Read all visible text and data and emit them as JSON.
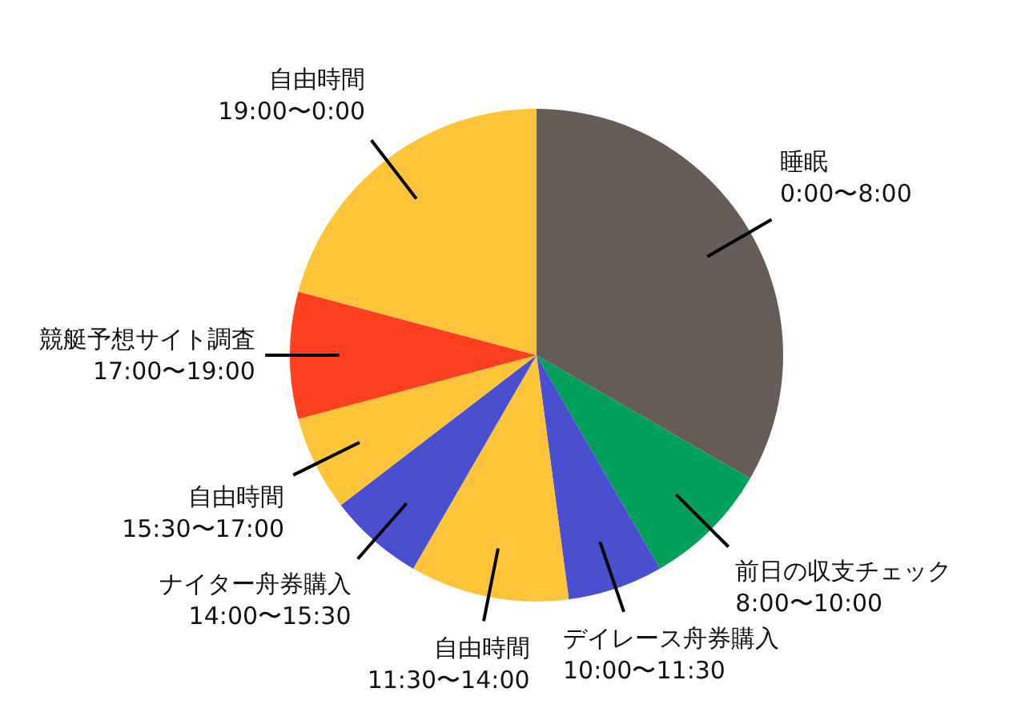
{
  "chart_data": {
    "type": "pie",
    "categories": [
      "睡眠\n0:00〜8:00",
      "前日の収支チェック\n8:00〜10:00",
      "デイレース舟券購入\n10:00〜11:30",
      "自由時間\n11:30〜14:00",
      "ナイター舟券購入\n14:00〜15:30",
      "自由時間\n15:30〜17:00",
      "競艇予想サイト調査\n17:00〜19:00",
      "自由時間\n19:00〜0:00"
    ],
    "values": [
      33.33,
      8.33,
      6.25,
      10.42,
      6.25,
      6.25,
      8.33,
      20.84
    ],
    "colors": [
      "#675d58",
      "#00a05a",
      "#4a4fd0",
      "#ffc43a",
      "#4a4fd0",
      "#ffc43a",
      "#fc4020",
      "#ffc43a"
    ]
  }
}
